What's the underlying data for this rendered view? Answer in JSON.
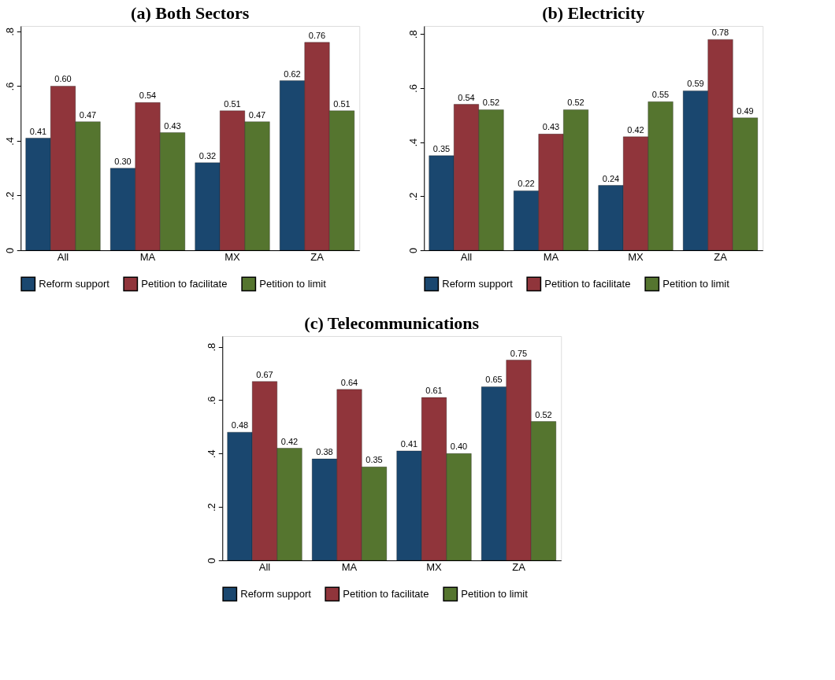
{
  "chart_data": [
    {
      "type": "bar",
      "title": "(a) Both Sectors",
      "categories": [
        "All",
        "MA",
        "MX",
        "ZA"
      ],
      "series": [
        {
          "name": "Reform support",
          "color": "#1a476f",
          "values": [
            0.41,
            0.3,
            0.32,
            0.62
          ],
          "value_labels": [
            "0.41",
            "0.30",
            "0.32",
            "0.62"
          ]
        },
        {
          "name": "Petition to facilitate",
          "color": "#90353b",
          "values": [
            0.6,
            0.54,
            0.51,
            0.76
          ],
          "value_labels": [
            "0.60",
            "0.54",
            "0.51",
            "0.76"
          ]
        },
        {
          "name": "Petition to limit",
          "color": "#55752f",
          "values": [
            0.47,
            0.43,
            0.47,
            0.51
          ],
          "value_labels": [
            "0.47",
            "0.43",
            "0.47",
            "0.51"
          ]
        }
      ],
      "ylim": [
        0,
        0.82
      ],
      "yticks": [
        0,
        {
          "value": 0.2,
          "label": ".2"
        },
        {
          "value": 0.4,
          "label": ".4"
        },
        {
          "value": 0.6,
          "label": ".6"
        },
        {
          "value": 0.8,
          "label": ".8"
        }
      ],
      "legend": "bottom",
      "grid": false
    },
    {
      "type": "bar",
      "title": "(b) Electricity",
      "categories": [
        "All",
        "MA",
        "MX",
        "ZA"
      ],
      "series": [
        {
          "name": "Reform support",
          "color": "#1a476f",
          "values": [
            0.35,
            0.22,
            0.24,
            0.59
          ],
          "value_labels": [
            "0.35",
            "0.22",
            "0.24",
            "0.59"
          ]
        },
        {
          "name": "Petition to facilitate",
          "color": "#90353b",
          "values": [
            0.54,
            0.43,
            0.42,
            0.78
          ],
          "value_labels": [
            "0.54",
            "0.43",
            "0.42",
            "0.78"
          ]
        },
        {
          "name": "Petition to limit",
          "color": "#55752f",
          "values": [
            0.52,
            0.52,
            0.55,
            0.49
          ],
          "value_labels": [
            "0.52",
            "0.52",
            "0.55",
            "0.49"
          ]
        }
      ],
      "ylim": [
        0,
        0.83
      ],
      "yticks": [
        0,
        {
          "value": 0.2,
          "label": ".2"
        },
        {
          "value": 0.4,
          "label": ".4"
        },
        {
          "value": 0.6,
          "label": ".6"
        },
        {
          "value": 0.8,
          "label": ".8"
        }
      ],
      "legend": "bottom",
      "grid": false
    },
    {
      "type": "bar",
      "title": "(c) Telecommunications",
      "categories": [
        "All",
        "MA",
        "MX",
        "ZA"
      ],
      "series": [
        {
          "name": "Reform support",
          "color": "#1a476f",
          "values": [
            0.48,
            0.38,
            0.41,
            0.65
          ],
          "value_labels": [
            "0.48",
            "0.38",
            "0.41",
            "0.65"
          ]
        },
        {
          "name": "Petition to facilitate",
          "color": "#90353b",
          "values": [
            0.67,
            0.64,
            0.61,
            0.75
          ],
          "value_labels": [
            "0.67",
            "0.64",
            "0.61",
            "0.75"
          ]
        },
        {
          "name": "Petition to limit",
          "color": "#55752f",
          "values": [
            0.42,
            0.35,
            0.4,
            0.52
          ],
          "value_labels": [
            "0.42",
            "0.35",
            "0.40",
            "0.52"
          ]
        }
      ],
      "ylim": [
        0,
        0.84
      ],
      "yticks": [
        0,
        {
          "value": 0.2,
          "label": ".2"
        },
        {
          "value": 0.4,
          "label": ".4"
        },
        {
          "value": 0.6,
          "label": ".6"
        },
        {
          "value": 0.8,
          "label": ".8"
        }
      ],
      "legend": "bottom",
      "grid": false
    }
  ]
}
